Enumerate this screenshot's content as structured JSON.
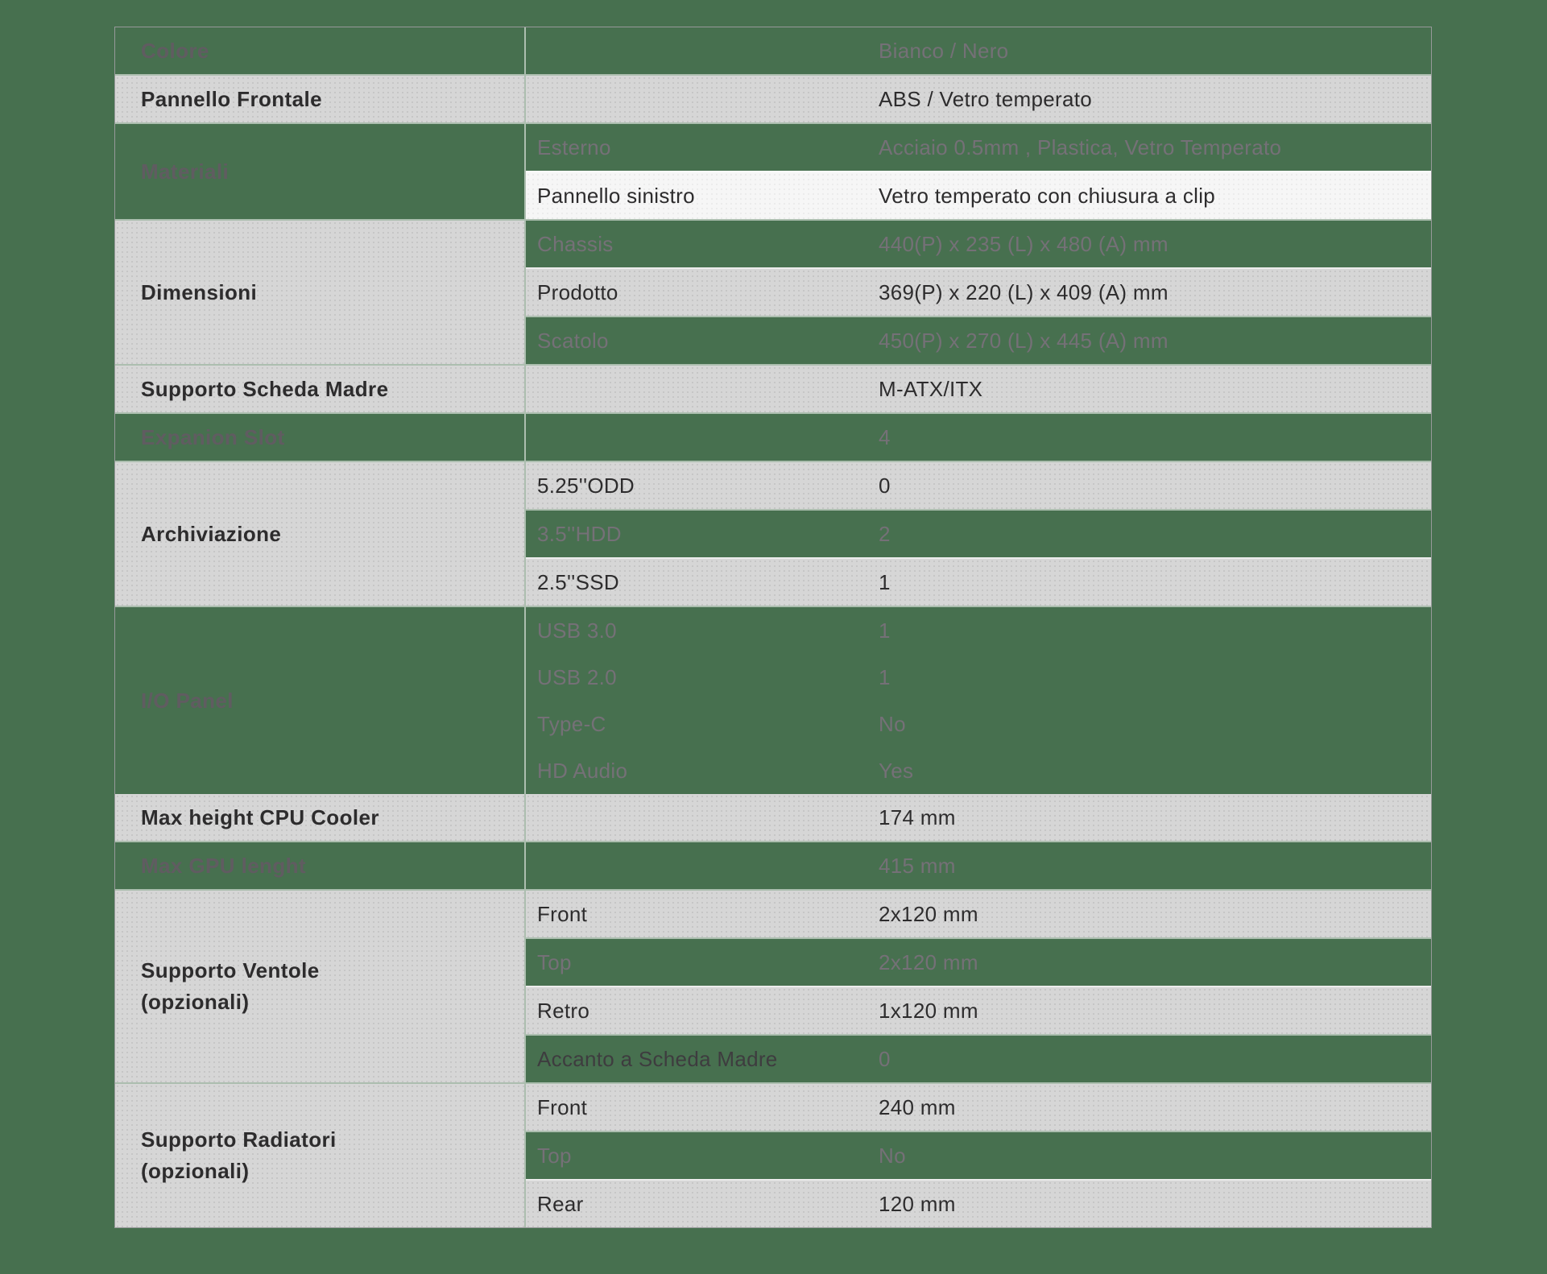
{
  "page": {
    "background_color": "#47704F"
  },
  "table": {
    "colors": {
      "page_bg": "#47704F",
      "gray_row_bg": "#d6d6d6",
      "white_row_bg": "#f6f6f6",
      "separator": "rgba(255,255,255,0.55)",
      "table_border": "#97999a",
      "dark_text": "#2d2c2d",
      "green_label_text": "#605c61",
      "green_value_text": "#757077",
      "sub_dark_text": "#3e3c3f"
    },
    "sections": [
      {
        "name": "colore",
        "label": "Colore",
        "label_style": "green",
        "rows": [
          {
            "sub": "",
            "value": "Bianco / Nero",
            "style": "green"
          }
        ]
      },
      {
        "name": "pannello-frontale",
        "label": "Pannello Frontale",
        "label_style": "gray",
        "rows": [
          {
            "sub": "",
            "value": "ABS / Vetro temperato",
            "style": "gray"
          }
        ]
      },
      {
        "name": "materiali",
        "label": "Materiali",
        "label_style": "green",
        "rows": [
          {
            "sub": "Esterno",
            "value": "Acciaio  0.5mm , Plastica, Vetro Temperato",
            "style": "green"
          },
          {
            "sub": "Pannello sinistro",
            "value": "Vetro temperato con chiusura a clip",
            "style": "white"
          }
        ]
      },
      {
        "name": "dimensioni",
        "label": "Dimensioni",
        "label_style": "gray",
        "rows": [
          {
            "sub": "Chassis",
            "value": "440(P) x 235 (L) x 480 (A) mm",
            "style": "green"
          },
          {
            "sub": "Prodotto",
            "value": "369(P) x 220 (L) x 409 (A) mm",
            "style": "gray"
          },
          {
            "sub": "Scatolo",
            "value": "450(P) x 270 (L) x 445 (A) mm",
            "style": "green"
          }
        ]
      },
      {
        "name": "supporto-scheda-madre",
        "label": "Supporto Scheda Madre",
        "label_style": "gray",
        "rows": [
          {
            "sub": "",
            "value": "M-ATX/ITX",
            "style": "gray"
          }
        ]
      },
      {
        "name": "expanion-slot",
        "label": "Expanion Slot",
        "label_style": "green",
        "rows": [
          {
            "sub": "",
            "value": "4",
            "style": "green"
          }
        ]
      },
      {
        "name": "archiviazione",
        "label": "Archiviazione",
        "label_style": "gray",
        "rows": [
          {
            "sub": "5.25''ODD",
            "value": "0",
            "style": "gray"
          },
          {
            "sub": "3.5''HDD",
            "value": "2",
            "style": "green"
          },
          {
            "sub": "2.5''SSD",
            "value": "1",
            "style": "gray"
          }
        ]
      },
      {
        "name": "io-panel",
        "label": "I/O Panel",
        "label_style": "green",
        "no_row_separators": true,
        "rows": [
          {
            "sub": "USB 3.0",
            "value": "1",
            "style": "green"
          },
          {
            "sub": "USB 2.0",
            "value": "1",
            "style": "green"
          },
          {
            "sub": "Type-C",
            "value": "No",
            "style": "green"
          },
          {
            "sub": "HD Audio",
            "value": "Yes",
            "style": "green"
          }
        ]
      },
      {
        "name": "max-height-cpu-cooler",
        "label": "Max height CPU Cooler",
        "label_style": "gray",
        "no_top_separator": true,
        "rows": [
          {
            "sub": "",
            "value": "174 mm",
            "style": "gray"
          }
        ]
      },
      {
        "name": "max-gpu-lenght",
        "label": "Max GPU lenght",
        "label_style": "green",
        "rows": [
          {
            "sub": "",
            "value": "415 mm",
            "style": "green"
          }
        ]
      },
      {
        "name": "supporto-ventole",
        "label": "Supporto Ventole\n(opzionali)",
        "label_style": "gray",
        "rows": [
          {
            "sub": "Front",
            "value": "2x120 mm",
            "style": "gray"
          },
          {
            "sub": "Top",
            "value": "2x120 mm",
            "style": "green"
          },
          {
            "sub": "Retro",
            "value": "1x120 mm",
            "style": "gray"
          },
          {
            "sub": "Accanto a Scheda Madre",
            "value": "0",
            "style": "green",
            "sub_dark": true
          }
        ]
      },
      {
        "name": "supporto-radiatori",
        "label": "Supporto Radiatori\n(opzionali)",
        "label_style": "gray",
        "rows": [
          {
            "sub": "Front",
            "value": "240 mm",
            "style": "gray"
          },
          {
            "sub": "Top",
            "value": "No",
            "style": "green"
          },
          {
            "sub": "Rear",
            "value": "120 mm",
            "style": "gray"
          }
        ]
      }
    ]
  }
}
